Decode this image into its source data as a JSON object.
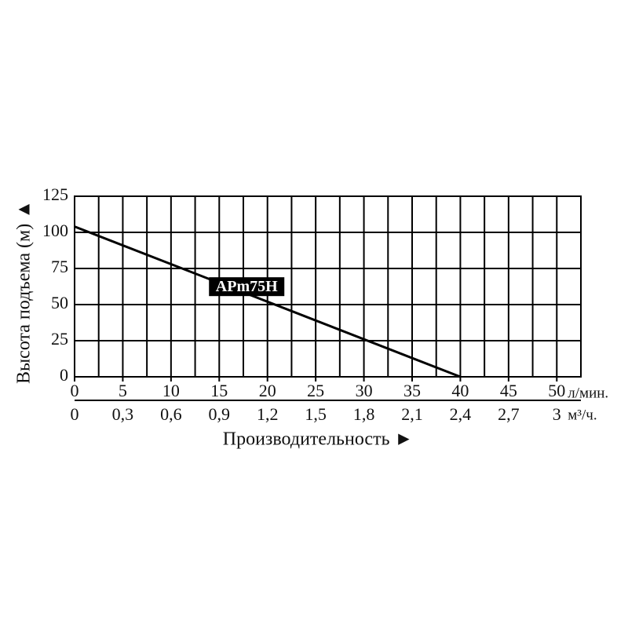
{
  "chart_data": {
    "type": "line",
    "ylabel": "Высота подъема (м) ▲",
    "xlabel": "Производительность ►",
    "x_unit": "л/мин.",
    "x2_unit": "м³/ч.",
    "x": [
      0,
      40
    ],
    "series": [
      {
        "name": "APm75H",
        "color": "#000000",
        "values": [
          104,
          0
        ]
      }
    ],
    "xlim": [
      0,
      52.5
    ],
    "ylim": [
      0,
      125
    ],
    "xticks": [
      0,
      5,
      10,
      15,
      20,
      25,
      30,
      35,
      40,
      45,
      50
    ],
    "xminorticks": [
      2.5,
      7.5,
      12.5,
      17.5,
      22.5,
      27.5,
      32.5,
      37.5,
      42.5,
      47.5
    ],
    "yticks": [
      0,
      25,
      50,
      75,
      100,
      125
    ],
    "x2lim": [
      0,
      3.15
    ],
    "x2ticks": [
      0,
      {
        "value": 0.3,
        "label": "0,3"
      },
      {
        "value": 0.6,
        "label": "0,6"
      },
      {
        "value": 0.9,
        "label": "0,9"
      },
      {
        "value": 1.2,
        "label": "1,2"
      },
      {
        "value": 1.5,
        "label": "1,5"
      },
      {
        "value": 1.8,
        "label": "1,8"
      },
      {
        "value": 2.1,
        "label": "2,1"
      },
      {
        "value": 2.4,
        "label": "2,4"
      },
      {
        "value": 2.7,
        "label": "2,7"
      },
      3
    ],
    "grid": true
  }
}
